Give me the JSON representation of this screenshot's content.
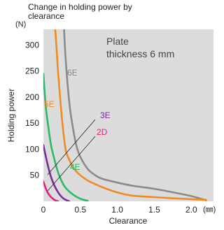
{
  "chart_data": {
    "type": "line",
    "title_lines": [
      "Change in holding power by",
      "clearance"
    ],
    "xlabel": "Clearance",
    "ylabel": "Holding power",
    "x_unit": "(㎜)",
    "y_unit": "(N)",
    "xlim": [
      0,
      2.3
    ],
    "ylim": [
      0,
      330
    ],
    "x_ticks": [
      "0",
      "0.5",
      "1.0",
      "1.5",
      "2.0"
    ],
    "x_tick_values": [
      0,
      0.5,
      1.0,
      1.5,
      2.0
    ],
    "y_ticks": [
      "50",
      "100",
      "150",
      "200",
      "250",
      "300"
    ],
    "y_tick_values": [
      50,
      100,
      150,
      200,
      250,
      300
    ],
    "grid": false,
    "annotation_lines": [
      "Plate",
      "thickness 6 mm"
    ],
    "background_color": "#dcdcdc",
    "series": [
      {
        "name": "6E",
        "color": "#8a8a8a",
        "x": [
          0.28,
          0.3,
          0.35,
          0.4,
          0.45,
          0.5,
          0.6,
          0.7,
          0.8,
          1.0,
          1.2,
          1.5,
          1.8,
          2.0,
          2.2
        ],
        "y": [
          330,
          275,
          190,
          140,
          105,
          85,
          62,
          50,
          43,
          36,
          30,
          24,
          16,
          10,
          2
        ]
      },
      {
        "name": "5E",
        "color": "#f08a22",
        "x": [
          0.16,
          0.18,
          0.2,
          0.25,
          0.3,
          0.35,
          0.4,
          0.5,
          0.6,
          0.7,
          0.8,
          1.0,
          1.2,
          1.5,
          2.0,
          2.2
        ],
        "y": [
          330,
          290,
          245,
          160,
          100,
          80,
          65,
          50,
          40,
          33,
          27,
          17,
          11,
          8,
          4,
          3
        ]
      },
      {
        "name": "4E",
        "color": "#2db866",
        "x": [
          0,
          0.03,
          0.06,
          0.1,
          0.15,
          0.2,
          0.25,
          0.3,
          0.4,
          0.5,
          0.6
        ],
        "y": [
          245,
          185,
          150,
          110,
          80,
          55,
          38,
          26,
          13,
          5,
          1
        ]
      },
      {
        "name": "3E",
        "color": "#7a2c9a",
        "x": [
          0,
          0.05,
          0.1,
          0.15,
          0.2,
          0.25,
          0.3,
          0.35
        ],
        "y": [
          108,
          75,
          48,
          30,
          17,
          8,
          3,
          0
        ]
      },
      {
        "name": "2D",
        "color": "#e51e86",
        "x": [
          0,
          0.04,
          0.08,
          0.12,
          0.16,
          0.2
        ],
        "y": [
          38,
          22,
          12,
          6,
          2,
          0
        ]
      }
    ]
  }
}
